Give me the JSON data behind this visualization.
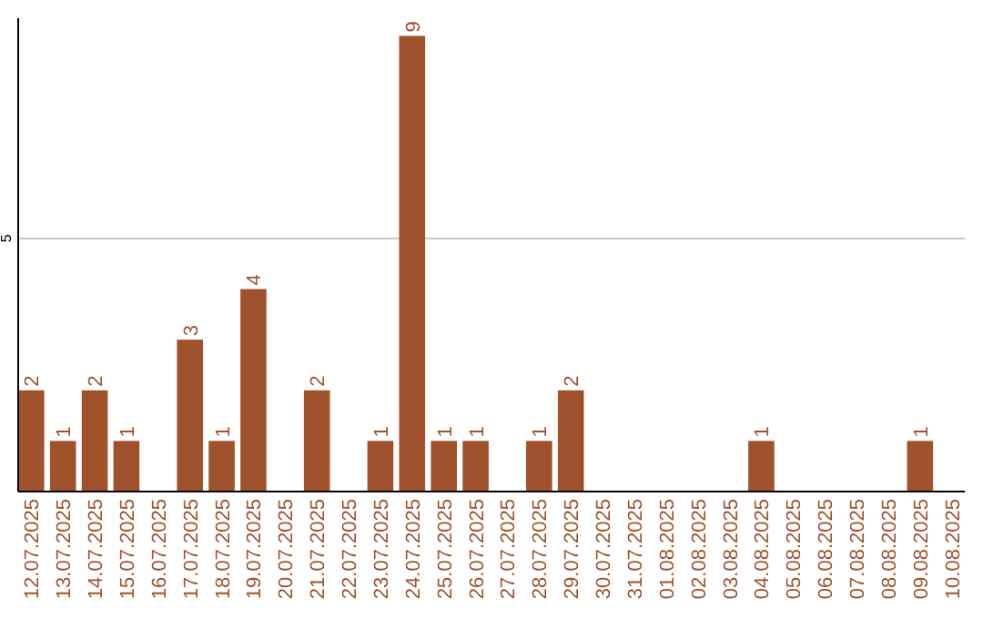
{
  "chart_data": {
    "type": "bar",
    "categories": [
      "12.07.2025",
      "13.07.2025",
      "14.07.2025",
      "15.07.2025",
      "16.07.2025",
      "17.07.2025",
      "18.07.2025",
      "19.07.2025",
      "20.07.2025",
      "21.07.2025",
      "22.07.2025",
      "23.07.2025",
      "24.07.2025",
      "25.07.2025",
      "26.07.2025",
      "27.07.2025",
      "28.07.2025",
      "29.07.2025",
      "30.07.2025",
      "31.07.2025",
      "01.08.2025",
      "02.08.2025",
      "03.08.2025",
      "04.08.2025",
      "05.08.2025",
      "06.08.2025",
      "07.08.2025",
      "08.08.2025",
      "09.08.2025",
      "10.08.2025"
    ],
    "values": [
      2,
      1,
      2,
      1,
      0,
      3,
      1,
      4,
      0,
      2,
      0,
      1,
      9,
      1,
      1,
      0,
      1,
      2,
      0,
      0,
      0,
      0,
      0,
      1,
      0,
      0,
      0,
      0,
      1,
      0
    ],
    "value_labels": [
      "2",
      "1",
      "2",
      "1",
      null,
      "3",
      "1",
      "4",
      null,
      "2",
      null,
      "1",
      "9",
      "1",
      "1",
      null,
      "1",
      "2",
      null,
      null,
      null,
      null,
      null,
      "1",
      null,
      null,
      null,
      null,
      "1",
      null
    ],
    "color": "#a0522d",
    "ylim": [
      0,
      9.35
    ],
    "yticks": [
      5
    ],
    "grid": "y"
  }
}
